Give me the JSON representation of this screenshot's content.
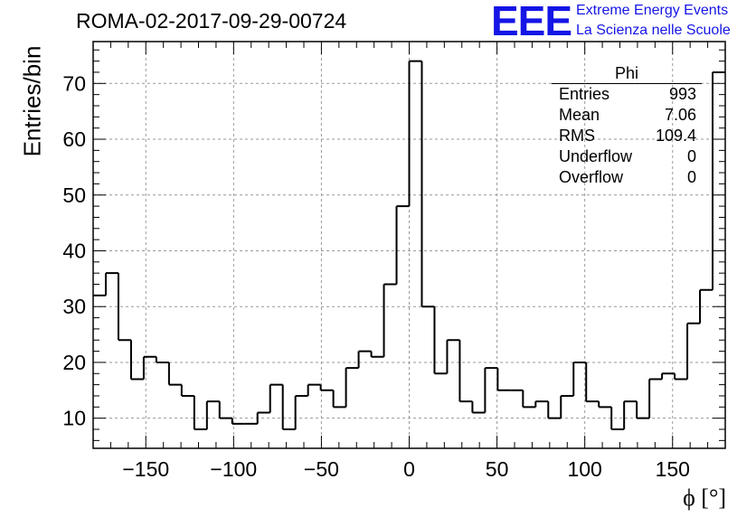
{
  "header": {
    "title": "ROMA-02-2017-09-29-00724",
    "logo_text": "EEE",
    "logo_line1": "Extreme Energy Events",
    "logo_line2": "La Scienza nelle Scuole",
    "accent_color": "#1515e6"
  },
  "stats_box": {
    "title": "Phi",
    "rows": [
      {
        "label": "Entries",
        "value": "993"
      },
      {
        "label": "Mean",
        "value": "7.06"
      },
      {
        "label": "RMS",
        "value": "109.4"
      },
      {
        "label": "Underflow",
        "value": "0"
      },
      {
        "label": "Overflow",
        "value": "0"
      }
    ]
  },
  "chart_data": {
    "type": "histogram",
    "title": "ROMA-02-2017-09-29-00724",
    "xlabel": "ϕ [°]",
    "ylabel": "Entries/bin",
    "xlim": [
      -180,
      180
    ],
    "ylim": [
      4.6,
      77.5
    ],
    "bin_width": 7.2,
    "x_ticks": [
      -150,
      -100,
      -50,
      0,
      50,
      100,
      150
    ],
    "y_ticks": [
      10,
      20,
      30,
      40,
      50,
      60,
      70
    ],
    "grid": true,
    "line_color": "#000000",
    "values": [
      32,
      36,
      24,
      17,
      21,
      20,
      16,
      14,
      8,
      13,
      10,
      9,
      9,
      11,
      16,
      8,
      14,
      16,
      15,
      12,
      19,
      22,
      21,
      34,
      48,
      74,
      30,
      18,
      24,
      13,
      11,
      19,
      15,
      15,
      12,
      13,
      10,
      14,
      20,
      13,
      12,
      8,
      13,
      10,
      17,
      18,
      17,
      27,
      33,
      72
    ]
  }
}
